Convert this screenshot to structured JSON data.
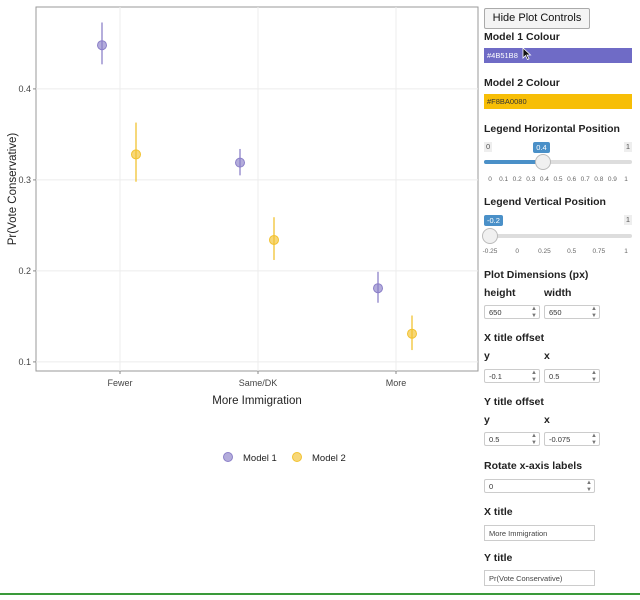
{
  "chart_data": {
    "type": "scatter",
    "xlabel": "More Immigration",
    "ylabel": "Pr(Vote Conservative)",
    "categories": [
      "Fewer",
      "Same/DK",
      "More"
    ],
    "ylim": [
      0.09,
      0.49
    ],
    "yticks": [
      0.1,
      0.2,
      0.3,
      0.4
    ],
    "ytick_labels": [
      "0.1",
      "0.2",
      "0.3",
      "0.4"
    ],
    "grid": true,
    "legend_position": "bottom",
    "series": [
      {
        "name": "Model 1",
        "color": "#8B7FC8",
        "values": [
          0.448,
          0.319,
          0.181
        ],
        "lower": [
          0.427,
          0.305,
          0.165
        ],
        "upper": [
          0.473,
          0.334,
          0.199
        ]
      },
      {
        "name": "Model 2",
        "color": "#F2C230",
        "values": [
          0.328,
          0.234,
          0.131
        ],
        "lower": [
          0.298,
          0.212,
          0.113
        ],
        "upper": [
          0.363,
          0.259,
          0.151
        ]
      }
    ]
  },
  "controls": {
    "hide_button": "Hide Plot Controls",
    "model1_colour_label": "Model 1 Colour",
    "model1_colour_value": "#4B51B8",
    "model1_colour_swatch": "#6F6BC6",
    "model2_colour_label": "Model 2 Colour",
    "model2_colour_value": "#F8BA0080",
    "model2_colour_swatch": "#F7BE06",
    "legend_h_label": "Legend Horizontal Position",
    "legend_h_min": "0",
    "legend_h_max": "1",
    "legend_h_value": "0.4",
    "legend_h_fraction": 0.4,
    "legend_h_ticks": [
      "0",
      "0.1",
      "0.2",
      "0.3",
      "0.4",
      "0.5",
      "0.6",
      "0.7",
      "0.8",
      "0.9",
      "1"
    ],
    "legend_v_label": "Legend Vertical Position",
    "legend_v_max": "1",
    "legend_v_value": "-0.2",
    "legend_v_fraction": 0.04,
    "legend_v_ticks": [
      "-0.25",
      "0",
      "0.25",
      "0.5",
      "0.75",
      "1"
    ],
    "dims_label": "Plot Dimensions (px)",
    "height_label": "height",
    "width_label": "width",
    "height_value": "650",
    "width_value": "650",
    "x_offset_label": "X title offset",
    "x_offset_y_label": "y",
    "x_offset_x_label": "x",
    "x_offset_y_value": "-0.1",
    "x_offset_x_value": "0.5",
    "y_offset_label": "Y title offset",
    "y_offset_y_label": "y",
    "y_offset_x_label": "x",
    "y_offset_y_value": "0.5",
    "y_offset_x_value": "-0.075",
    "rotate_label": "Rotate x-axis labels",
    "rotate_value": "0",
    "x_title_label": "X title",
    "x_title_value": "More Immigration",
    "y_title_label": "Y title",
    "y_title_value": "Pr(Vote Conservative)"
  }
}
